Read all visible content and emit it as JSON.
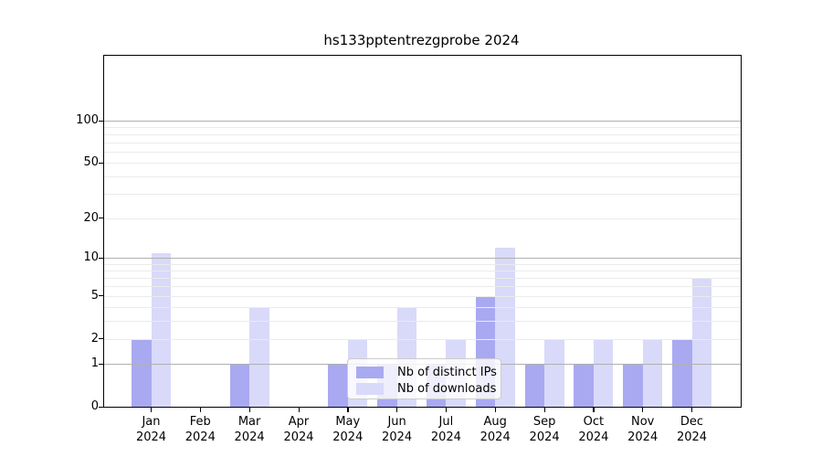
{
  "chart_data": {
    "type": "bar",
    "title": "hs133pptentrezgprobe 2024",
    "categories": [
      "Jan 2024",
      "Feb 2024",
      "Mar 2024",
      "Apr 2024",
      "May 2024",
      "Jun 2024",
      "Jul 2024",
      "Aug 2024",
      "Sep 2024",
      "Oct 2024",
      "Nov 2024",
      "Dec 2024"
    ],
    "months": [
      "Jan",
      "Feb",
      "Mar",
      "Apr",
      "May",
      "Jun",
      "Jul",
      "Aug",
      "Sep",
      "Oct",
      "Nov",
      "Dec"
    ],
    "year_label": "2024",
    "series": [
      {
        "name": "Nb of distinct IPs",
        "color": "#a9a9f1",
        "values": [
          2,
          0,
          1,
          0,
          1,
          1,
          1,
          5,
          1,
          1,
          1,
          2
        ]
      },
      {
        "name": "Nb of downloads",
        "color": "#d9d9f9",
        "values": [
          11,
          0,
          4,
          0,
          2,
          4,
          2,
          12,
          2,
          2,
          2,
          7
        ]
      }
    ],
    "y_scale": "log1p",
    "y_ticks": [
      0,
      1,
      2,
      5,
      10,
      20,
      50,
      100
    ],
    "ylim": [
      0,
      115
    ],
    "grid": {
      "major_values": [
        1,
        10,
        100
      ],
      "minor_values": [
        2,
        3,
        4,
        5,
        6,
        7,
        8,
        9,
        20,
        30,
        40,
        50,
        60,
        70,
        80,
        90
      ],
      "major_color": "#b0b0b0",
      "minor_color": "#ebebeb"
    },
    "legend_position": "lower center",
    "axis_color": "#000000",
    "background": "#ffffff"
  }
}
